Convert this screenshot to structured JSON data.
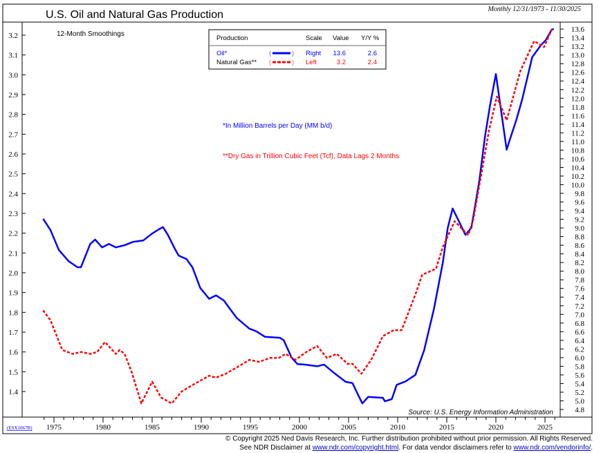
{
  "header": {
    "title": "U.S. Oil and Natural Gas Production",
    "date_range": "Monthly 12/31/1973 - 11/30/2025"
  },
  "subtitle": "12-Month Smoothings",
  "legend": {
    "headers": [
      "Production",
      "Scale",
      "Value",
      "Y/Y %"
    ],
    "rows": [
      {
        "name": "Oil*",
        "scale": "Right",
        "value": "13.6",
        "yoy": "2.6",
        "color": "#0000ff",
        "style": "solid"
      },
      {
        "name": "Natural Gas**",
        "scale": "Left",
        "value": "3.2",
        "yoy": "2.4",
        "color": "#ff0000",
        "style": "dashed"
      }
    ]
  },
  "notes": {
    "oil": "*In Million Barrels per Day (MM b/d)",
    "gas": "**Dry Gas in Trillion Cubic Feet (Tcf), Data Lags 2 Months"
  },
  "source": "Source: U.S. Energy Information Administration",
  "chart_code": "(ESX1067B)",
  "footer": {
    "copyright": "© Copyright 2025 Ned Davis Research, Inc.  Further distribution prohibited without prior permission.  All Rights Reserved.",
    "disclaimer_prefix": "See NDR Disclaimer at ",
    "disclaimer_link": "www.ndr.com/copyright.html",
    "disclaimer_mid": ". For data vendor disclaimers refer to ",
    "vendor_link": "www.ndr.com/vendorinfo/",
    "disclaimer_suffix": "."
  },
  "chart_data": {
    "type": "line",
    "xlim": [
      1973.9,
      2025.9
    ],
    "x_ticks": [
      "1975",
      "1980",
      "1985",
      "1990",
      "1995",
      "2000",
      "2005",
      "2010",
      "2015",
      "2020",
      "2025"
    ],
    "left_axis": {
      "ylim": [
        1.3,
        3.25
      ],
      "ticks": [
        "1.4",
        "1.5",
        "1.6",
        "1.7",
        "1.8",
        "1.9",
        "2.0",
        "2.1",
        "2.2",
        "2.3",
        "2.4",
        "2.5",
        "2.6",
        "2.7",
        "2.8",
        "2.9",
        "3.0",
        "3.1",
        "3.2"
      ]
    },
    "right_axis": {
      "ylim": [
        4.8,
        13.6
      ],
      "ticks": [
        "4.8",
        "5.0",
        "5.2",
        "5.4",
        "5.6",
        "5.8",
        "6.0",
        "6.2",
        "6.4",
        "6.6",
        "6.8",
        "7.0",
        "7.2",
        "7.4",
        "7.6",
        "7.8",
        "8.0",
        "8.2",
        "8.4",
        "8.6",
        "8.8",
        "9.0",
        "9.2",
        "9.4",
        "9.6",
        "9.8",
        "10.0",
        "10.2",
        "10.4",
        "10.6",
        "10.8",
        "11.0",
        "11.2",
        "11.4",
        "11.6",
        "11.8",
        "12.0",
        "12.2",
        "12.4",
        "12.6",
        "12.8",
        "13.0",
        "13.2",
        "13.4",
        "13.6"
      ]
    },
    "grid": false,
    "legend_position": "top-center",
    "series": [
      {
        "name": "Oil*",
        "axis": "right",
        "color": "#0000ff",
        "x": [
          1973.9,
          1974.65,
          1975.5,
          1976.5,
          1977.4,
          1977.75,
          1978.7,
          1979.2,
          1979.9,
          1980.6,
          1981.3,
          1982.2,
          1983.1,
          1984.1,
          1985.0,
          1985.7,
          1986.1,
          1986.6,
          1987.3,
          1987.7,
          1988.5,
          1989.1,
          1989.9,
          1990.8,
          1991.5,
          1992.3,
          1993.6,
          1994.9,
          1995.6,
          1996.5,
          1998.0,
          1998.4,
          1999.2,
          1999.8,
          2000.5,
          2001.8,
          2002.5,
          2003.5,
          2004.7,
          2005.4,
          2005.9,
          2006.4,
          2007.0,
          2008.5,
          2008.7,
          2009.4,
          2009.9,
          2010.8,
          2011.8,
          2012.7,
          2013.7,
          2014.6,
          2015.1,
          2015.6,
          2016.9,
          2017.5,
          2018.3,
          2018.9,
          2019.4,
          2020.0,
          2021.1,
          2021.4,
          2022.1,
          2022.7,
          2023.7,
          2024.6,
          2025.1,
          2025.7,
          2025.9
        ],
        "y": [
          9.21,
          8.95,
          8.49,
          8.23,
          8.09,
          8.09,
          8.63,
          8.73,
          8.55,
          8.63,
          8.55,
          8.6,
          8.68,
          8.71,
          8.87,
          8.97,
          9.02,
          8.84,
          8.52,
          8.36,
          8.28,
          8.09,
          7.61,
          7.36,
          7.44,
          7.32,
          6.92,
          6.67,
          6.61,
          6.48,
          6.46,
          6.4,
          6.0,
          5.85,
          5.84,
          5.8,
          5.84,
          5.65,
          5.44,
          5.41,
          5.17,
          4.94,
          5.09,
          5.07,
          4.99,
          5.04,
          5.37,
          5.45,
          5.6,
          6.17,
          7.13,
          8.2,
          9.0,
          9.45,
          8.84,
          9.0,
          10.07,
          11.13,
          11.83,
          12.56,
          10.81,
          11.03,
          11.51,
          11.99,
          12.95,
          13.23,
          13.35,
          13.59,
          13.6
        ]
      },
      {
        "name": "Natural Gas**",
        "axis": "left",
        "color": "#ff0000",
        "x": [
          1973.9,
          1974.65,
          1975.85,
          1976.9,
          1977.75,
          1978.7,
          1979.4,
          1980.2,
          1981.3,
          1981.7,
          1982.2,
          1982.9,
          1983.9,
          1985.0,
          1985.9,
          1987.0,
          1988.0,
          1989.0,
          1990.1,
          1990.8,
          1991.5,
          1992.5,
          1993.9,
          1994.9,
          1995.9,
          1997.0,
          1997.9,
          1998.6,
          1999.6,
          2000.7,
          2001.8,
          2002.8,
          2003.8,
          2004.9,
          2005.4,
          2006.3,
          2007.3,
          2008.5,
          2009.6,
          2010.4,
          2011.8,
          2012.5,
          2013.9,
          2014.6,
          2015.8,
          2017.2,
          2017.7,
          2018.6,
          2019.3,
          2020.1,
          2021.1,
          2022.5,
          2023.9,
          2024.9,
          2025.7
        ],
        "y": [
          1.81,
          1.76,
          1.61,
          1.59,
          1.6,
          1.59,
          1.6,
          1.65,
          1.59,
          1.61,
          1.59,
          1.5,
          1.34,
          1.45,
          1.37,
          1.34,
          1.4,
          1.43,
          1.46,
          1.48,
          1.47,
          1.49,
          1.53,
          1.56,
          1.55,
          1.57,
          1.57,
          1.59,
          1.56,
          1.6,
          1.63,
          1.57,
          1.59,
          1.54,
          1.54,
          1.49,
          1.56,
          1.68,
          1.71,
          1.71,
          1.89,
          1.99,
          2.02,
          2.13,
          2.26,
          2.19,
          2.27,
          2.52,
          2.72,
          2.89,
          2.77,
          3.02,
          3.17,
          3.14,
          3.23
        ]
      }
    ]
  }
}
